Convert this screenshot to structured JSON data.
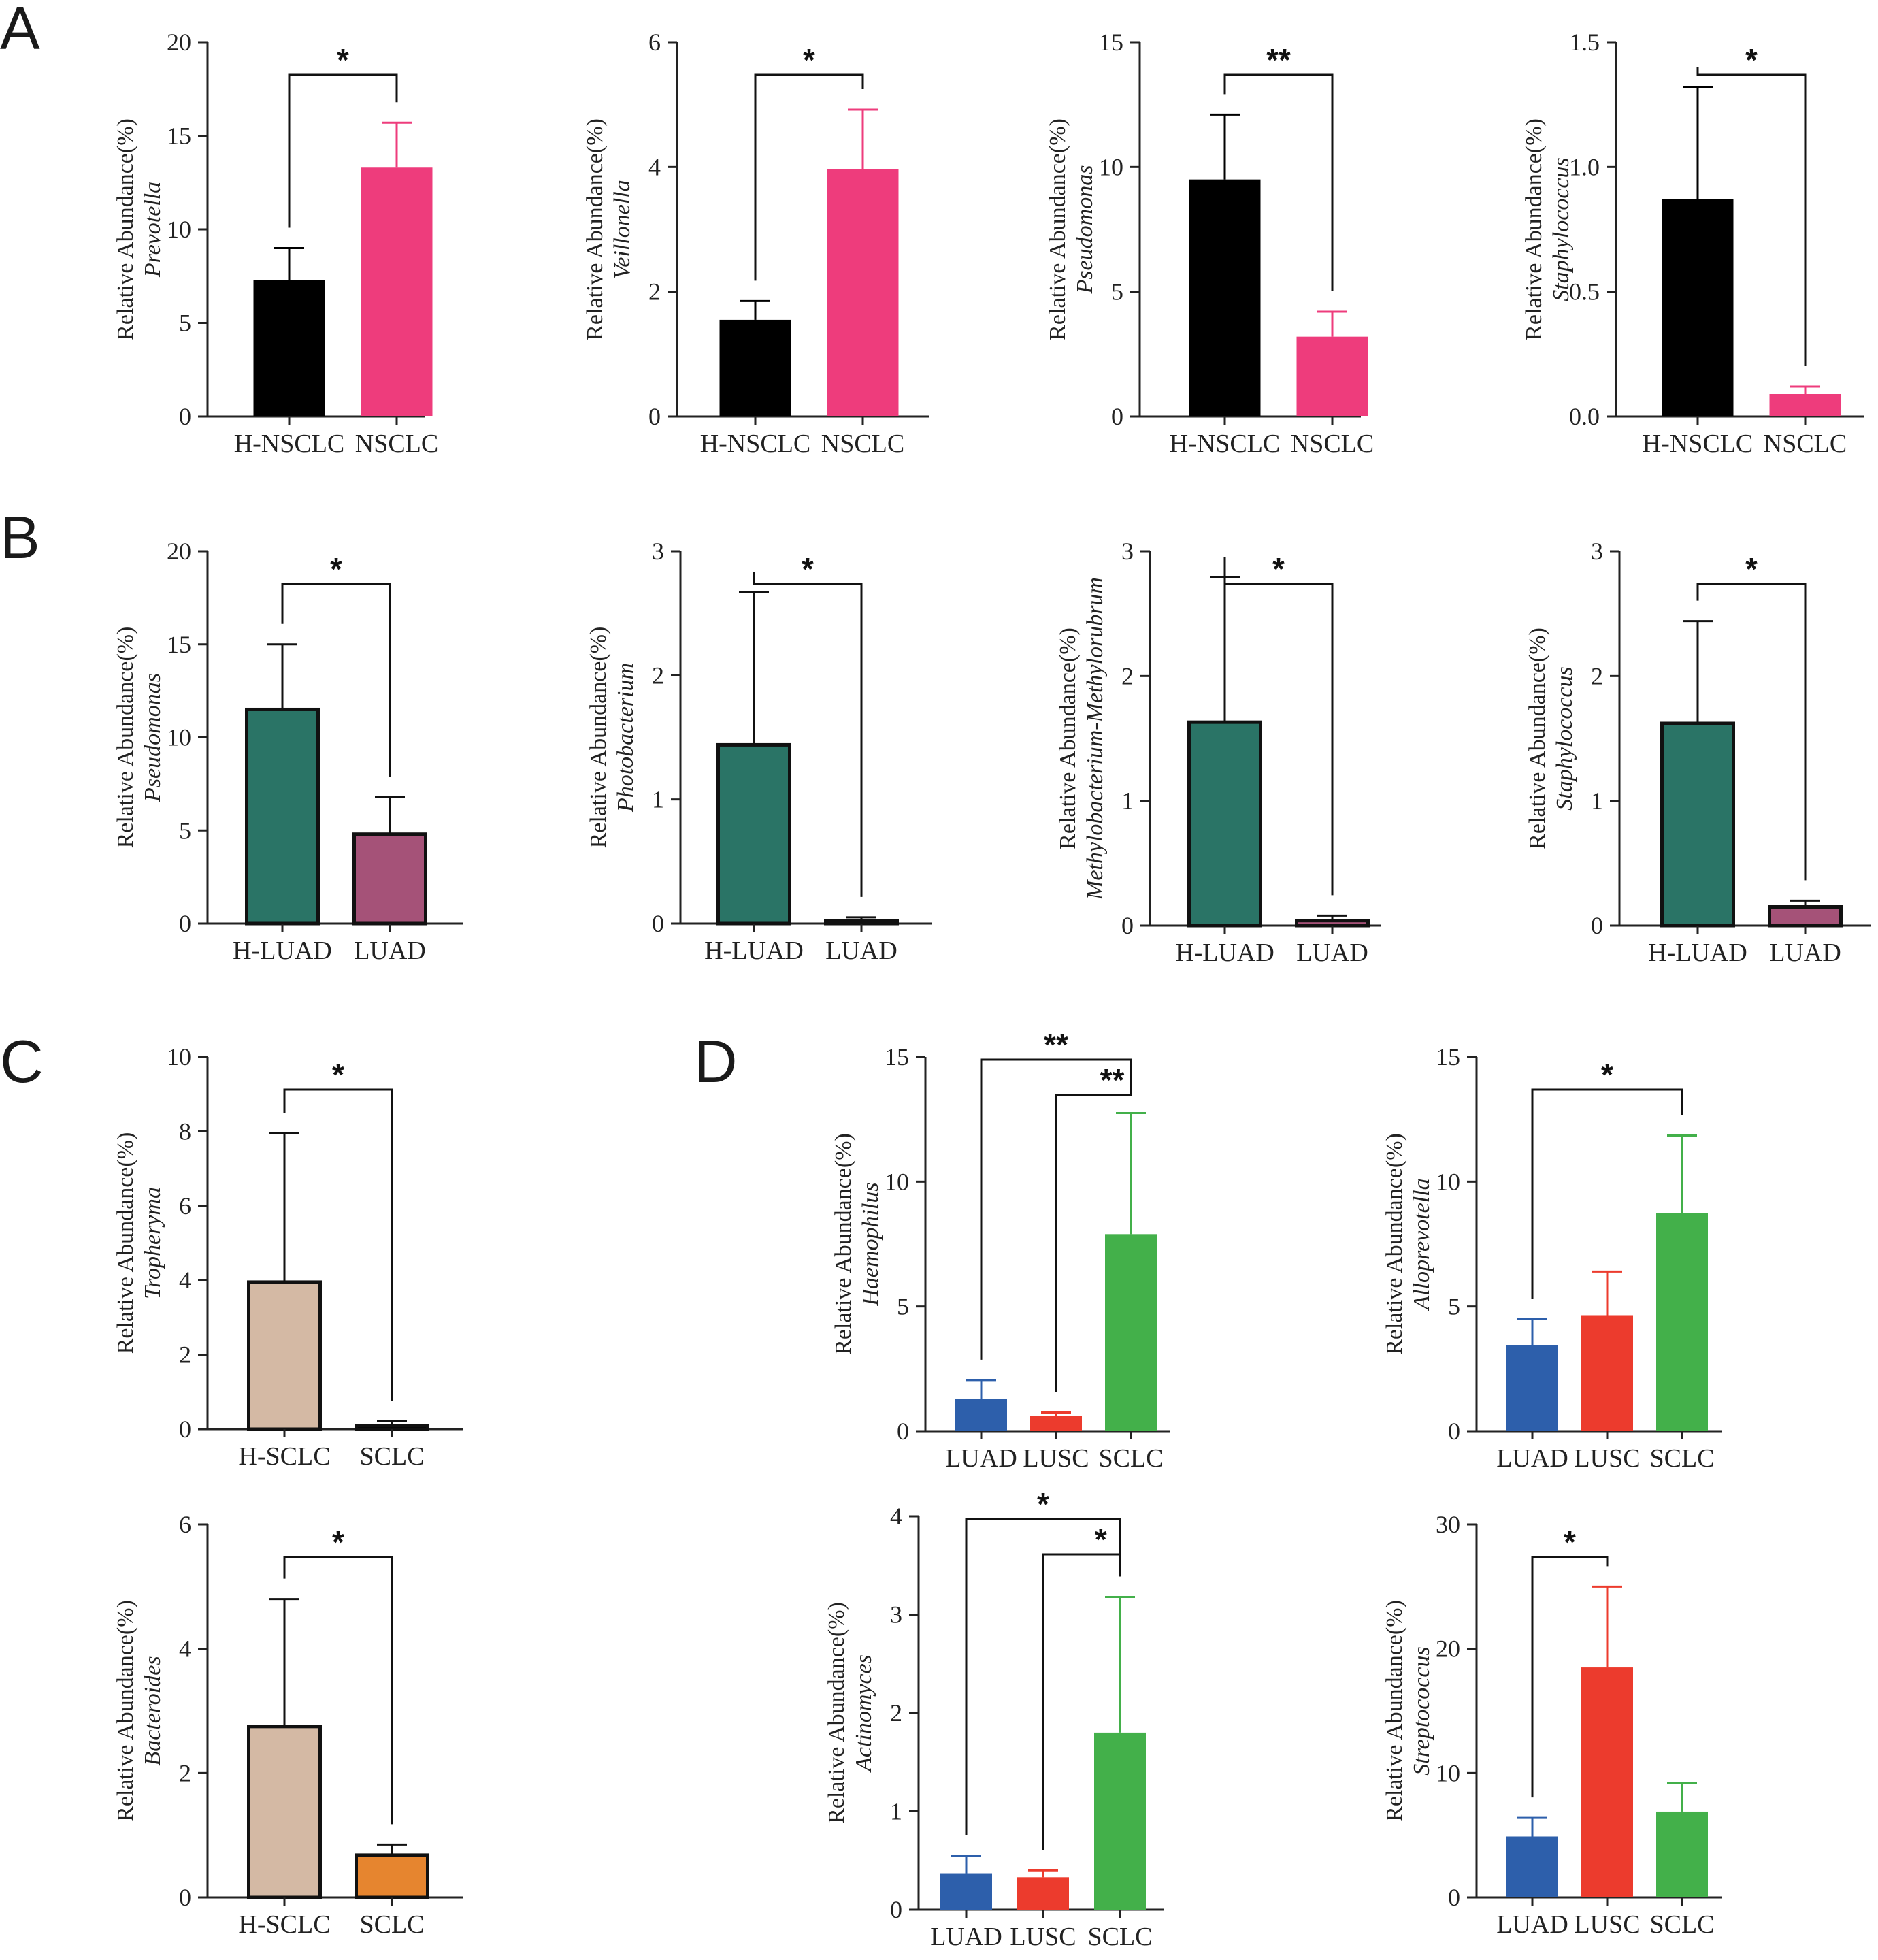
{
  "panels": [
    "A",
    "B",
    "C",
    "D"
  ],
  "y_label_prefix": "Relative Abundance(%)",
  "chart_data": [
    {
      "type": "bar",
      "panel": "A",
      "genus": "Prevotella",
      "categories": [
        "H-NSCLC",
        "NSCLC"
      ],
      "values": [
        7.3,
        13.3
      ],
      "errors": [
        9.0,
        15.7
      ],
      "colors": [
        "#000000",
        "#ee3c7c"
      ],
      "ylim": [
        0,
        20
      ],
      "yticks": [
        0,
        5,
        10,
        15,
        20
      ],
      "tick_labels": [
        "0",
        "5",
        "10",
        "15",
        "20"
      ],
      "comparisons": [
        {
          "from": 0,
          "to": 1,
          "label": "*"
        }
      ]
    },
    {
      "type": "bar",
      "panel": "A",
      "genus": "Veillonella",
      "categories": [
        "H-NSCLC",
        "NSCLC"
      ],
      "values": [
        1.55,
        3.97
      ],
      "errors": [
        1.85,
        4.92
      ],
      "colors": [
        "#000000",
        "#ee3c7c"
      ],
      "ylim": [
        0,
        6
      ],
      "yticks": [
        0,
        2,
        4,
        6
      ],
      "tick_labels": [
        "0",
        "2",
        "4",
        "6"
      ],
      "comparisons": [
        {
          "from": 0,
          "to": 1,
          "label": "*"
        }
      ]
    },
    {
      "type": "bar",
      "panel": "A",
      "genus": "Pseudomonas",
      "categories": [
        "H-NSCLC",
        "NSCLC"
      ],
      "values": [
        9.5,
        3.2
      ],
      "errors": [
        12.1,
        4.2
      ],
      "colors": [
        "#000000",
        "#ee3c7c"
      ],
      "ylim": [
        0,
        15
      ],
      "yticks": [
        0,
        5,
        10,
        15
      ],
      "tick_labels": [
        "0",
        "5",
        "10",
        "15"
      ],
      "comparisons": [
        {
          "from": 0,
          "to": 1,
          "label": "**"
        }
      ]
    },
    {
      "type": "bar",
      "panel": "A",
      "genus": "Staphylococcus",
      "categories": [
        "H-NSCLC",
        "NSCLC"
      ],
      "values": [
        0.87,
        0.09
      ],
      "errors": [
        1.32,
        0.12
      ],
      "colors": [
        "#000000",
        "#ee3c7c"
      ],
      "ylim": [
        0,
        1.5
      ],
      "yticks": [
        0,
        0.5,
        1.0,
        1.5
      ],
      "tick_labels": [
        "0.0",
        "0.5",
        "1.0",
        "1.5"
      ],
      "comparisons": [
        {
          "from": 0,
          "to": 1,
          "label": "*"
        }
      ]
    },
    {
      "type": "bar",
      "panel": "B",
      "genus": "Pseudomonas",
      "categories": [
        "H-LUAD",
        "LUAD"
      ],
      "values": [
        11.5,
        4.8
      ],
      "errors": [
        15.0,
        6.8
      ],
      "colors": [
        "#2a7466",
        "#a55278"
      ],
      "ylim": [
        0,
        20
      ],
      "yticks": [
        0,
        5,
        10,
        15,
        20
      ],
      "tick_labels": [
        "0",
        "5",
        "10",
        "15",
        "20"
      ],
      "comparisons": [
        {
          "from": 0,
          "to": 1,
          "label": "*"
        }
      ]
    },
    {
      "type": "bar",
      "panel": "B",
      "genus": "Photobacterium",
      "categories": [
        "H-LUAD",
        "LUAD"
      ],
      "values": [
        1.44,
        0.02
      ],
      "errors": [
        2.67,
        0.05
      ],
      "colors": [
        "#2a7466",
        "#a55278"
      ],
      "ylim": [
        0,
        3
      ],
      "yticks": [
        0,
        1,
        2,
        3
      ],
      "tick_labels": [
        "0",
        "1",
        "2",
        "3"
      ],
      "comparisons": [
        {
          "from": 0,
          "to": 1,
          "label": "*"
        }
      ]
    },
    {
      "type": "bar",
      "panel": "B",
      "genus": "Methylobacterium-Methylorubrum",
      "categories": [
        "H-LUAD",
        "LUAD"
      ],
      "values": [
        1.63,
        0.04
      ],
      "errors": [
        2.79,
        0.08
      ],
      "colors": [
        "#2a7466",
        "#a55278"
      ],
      "ylim": [
        0,
        3
      ],
      "yticks": [
        0,
        1,
        2,
        3
      ],
      "tick_labels": [
        "0",
        "1",
        "2",
        "3"
      ],
      "comparisons": [
        {
          "from": 0,
          "to": 1,
          "label": "*"
        }
      ]
    },
    {
      "type": "bar",
      "panel": "B",
      "genus": "Staphylococcus",
      "categories": [
        "H-LUAD",
        "LUAD"
      ],
      "values": [
        1.62,
        0.15
      ],
      "errors": [
        2.44,
        0.2
      ],
      "colors": [
        "#2a7466",
        "#a55278"
      ],
      "ylim": [
        0,
        3
      ],
      "yticks": [
        0,
        1,
        2,
        3
      ],
      "tick_labels": [
        "0",
        "1",
        "2",
        "3"
      ],
      "comparisons": [
        {
          "from": 0,
          "to": 1,
          "label": "*"
        }
      ]
    },
    {
      "type": "bar",
      "panel": "C",
      "genus": "Tropheryma",
      "categories": [
        "H-SCLC",
        "SCLC"
      ],
      "values": [
        3.95,
        0.1
      ],
      "errors": [
        7.95,
        0.22
      ],
      "colors": [
        "#d4b9a4",
        "#000000"
      ],
      "ylim": [
        0,
        10
      ],
      "yticks": [
        0,
        2,
        4,
        6,
        8,
        10
      ],
      "tick_labels": [
        "0",
        "2",
        "4",
        "6",
        "8",
        "10"
      ],
      "comparisons": [
        {
          "from": 0,
          "to": 1,
          "label": "*"
        }
      ]
    },
    {
      "type": "bar",
      "panel": "C",
      "genus": "Bacteroides",
      "categories": [
        "H-SCLC",
        "SCLC"
      ],
      "values": [
        2.75,
        0.68
      ],
      "errors": [
        4.8,
        0.85
      ],
      "colors": [
        "#d4b9a4",
        "#e6852f"
      ],
      "ylim": [
        0,
        6
      ],
      "yticks": [
        0,
        2,
        4,
        6
      ],
      "tick_labels": [
        "0",
        "2",
        "4",
        "6"
      ],
      "comparisons": [
        {
          "from": 0,
          "to": 1,
          "label": "*"
        }
      ]
    },
    {
      "type": "bar",
      "panel": "D",
      "genus": "Haemophilus",
      "categories": [
        "LUAD",
        "LUSC",
        "SCLC"
      ],
      "values": [
        1.3,
        0.6,
        7.9
      ],
      "errors": [
        2.05,
        0.75,
        12.75
      ],
      "colors": [
        "#2d5fab",
        "#ec3b2d",
        "#43b04a"
      ],
      "ylim": [
        0,
        15
      ],
      "yticks": [
        0,
        5,
        10,
        15
      ],
      "tick_labels": [
        "0",
        "5",
        "10",
        "15"
      ],
      "comparisons": [
        {
          "from": 0,
          "to": 2,
          "label": "**"
        },
        {
          "from": 1,
          "to": 2,
          "label": "**"
        }
      ]
    },
    {
      "type": "bar",
      "panel": "D",
      "genus": "Alloprevotella",
      "categories": [
        "LUAD",
        "LUSC",
        "SCLC"
      ],
      "values": [
        3.45,
        4.65,
        8.75
      ],
      "errors": [
        4.5,
        6.4,
        11.85
      ],
      "colors": [
        "#2d5fab",
        "#ec3b2d",
        "#43b04a"
      ],
      "ylim": [
        0,
        15
      ],
      "yticks": [
        0,
        5,
        10,
        15
      ],
      "tick_labels": [
        "0",
        "5",
        "10",
        "15"
      ],
      "comparisons": [
        {
          "from": 0,
          "to": 2,
          "label": "*"
        }
      ]
    },
    {
      "type": "bar",
      "panel": "D",
      "genus": "Actinomyces",
      "categories": [
        "LUAD",
        "LUSC",
        "SCLC"
      ],
      "values": [
        0.37,
        0.33,
        1.8
      ],
      "errors": [
        0.55,
        0.4,
        3.18
      ],
      "colors": [
        "#2d5fab",
        "#ec3b2d",
        "#43b04a"
      ],
      "ylim": [
        0,
        4
      ],
      "yticks": [
        0,
        1,
        2,
        3,
        4
      ],
      "tick_labels": [
        "0",
        "1",
        "2",
        "3",
        "4"
      ],
      "comparisons": [
        {
          "from": 0,
          "to": 2,
          "label": "*"
        },
        {
          "from": 1,
          "to": 2,
          "label": "*"
        }
      ]
    },
    {
      "type": "bar",
      "panel": "D",
      "genus": "Streptococcus",
      "categories": [
        "LUAD",
        "LUSC",
        "SCLC"
      ],
      "values": [
        4.9,
        18.5,
        6.9
      ],
      "errors": [
        6.4,
        25.0,
        9.2
      ],
      "colors": [
        "#2d5fab",
        "#ec3b2d",
        "#43b04a"
      ],
      "ylim": [
        0,
        30
      ],
      "yticks": [
        0,
        10,
        20,
        30
      ],
      "tick_labels": [
        "0",
        "10",
        "20",
        "30"
      ],
      "comparisons": [
        {
          "from": 0,
          "to": 1,
          "label": "*"
        }
      ]
    }
  ]
}
